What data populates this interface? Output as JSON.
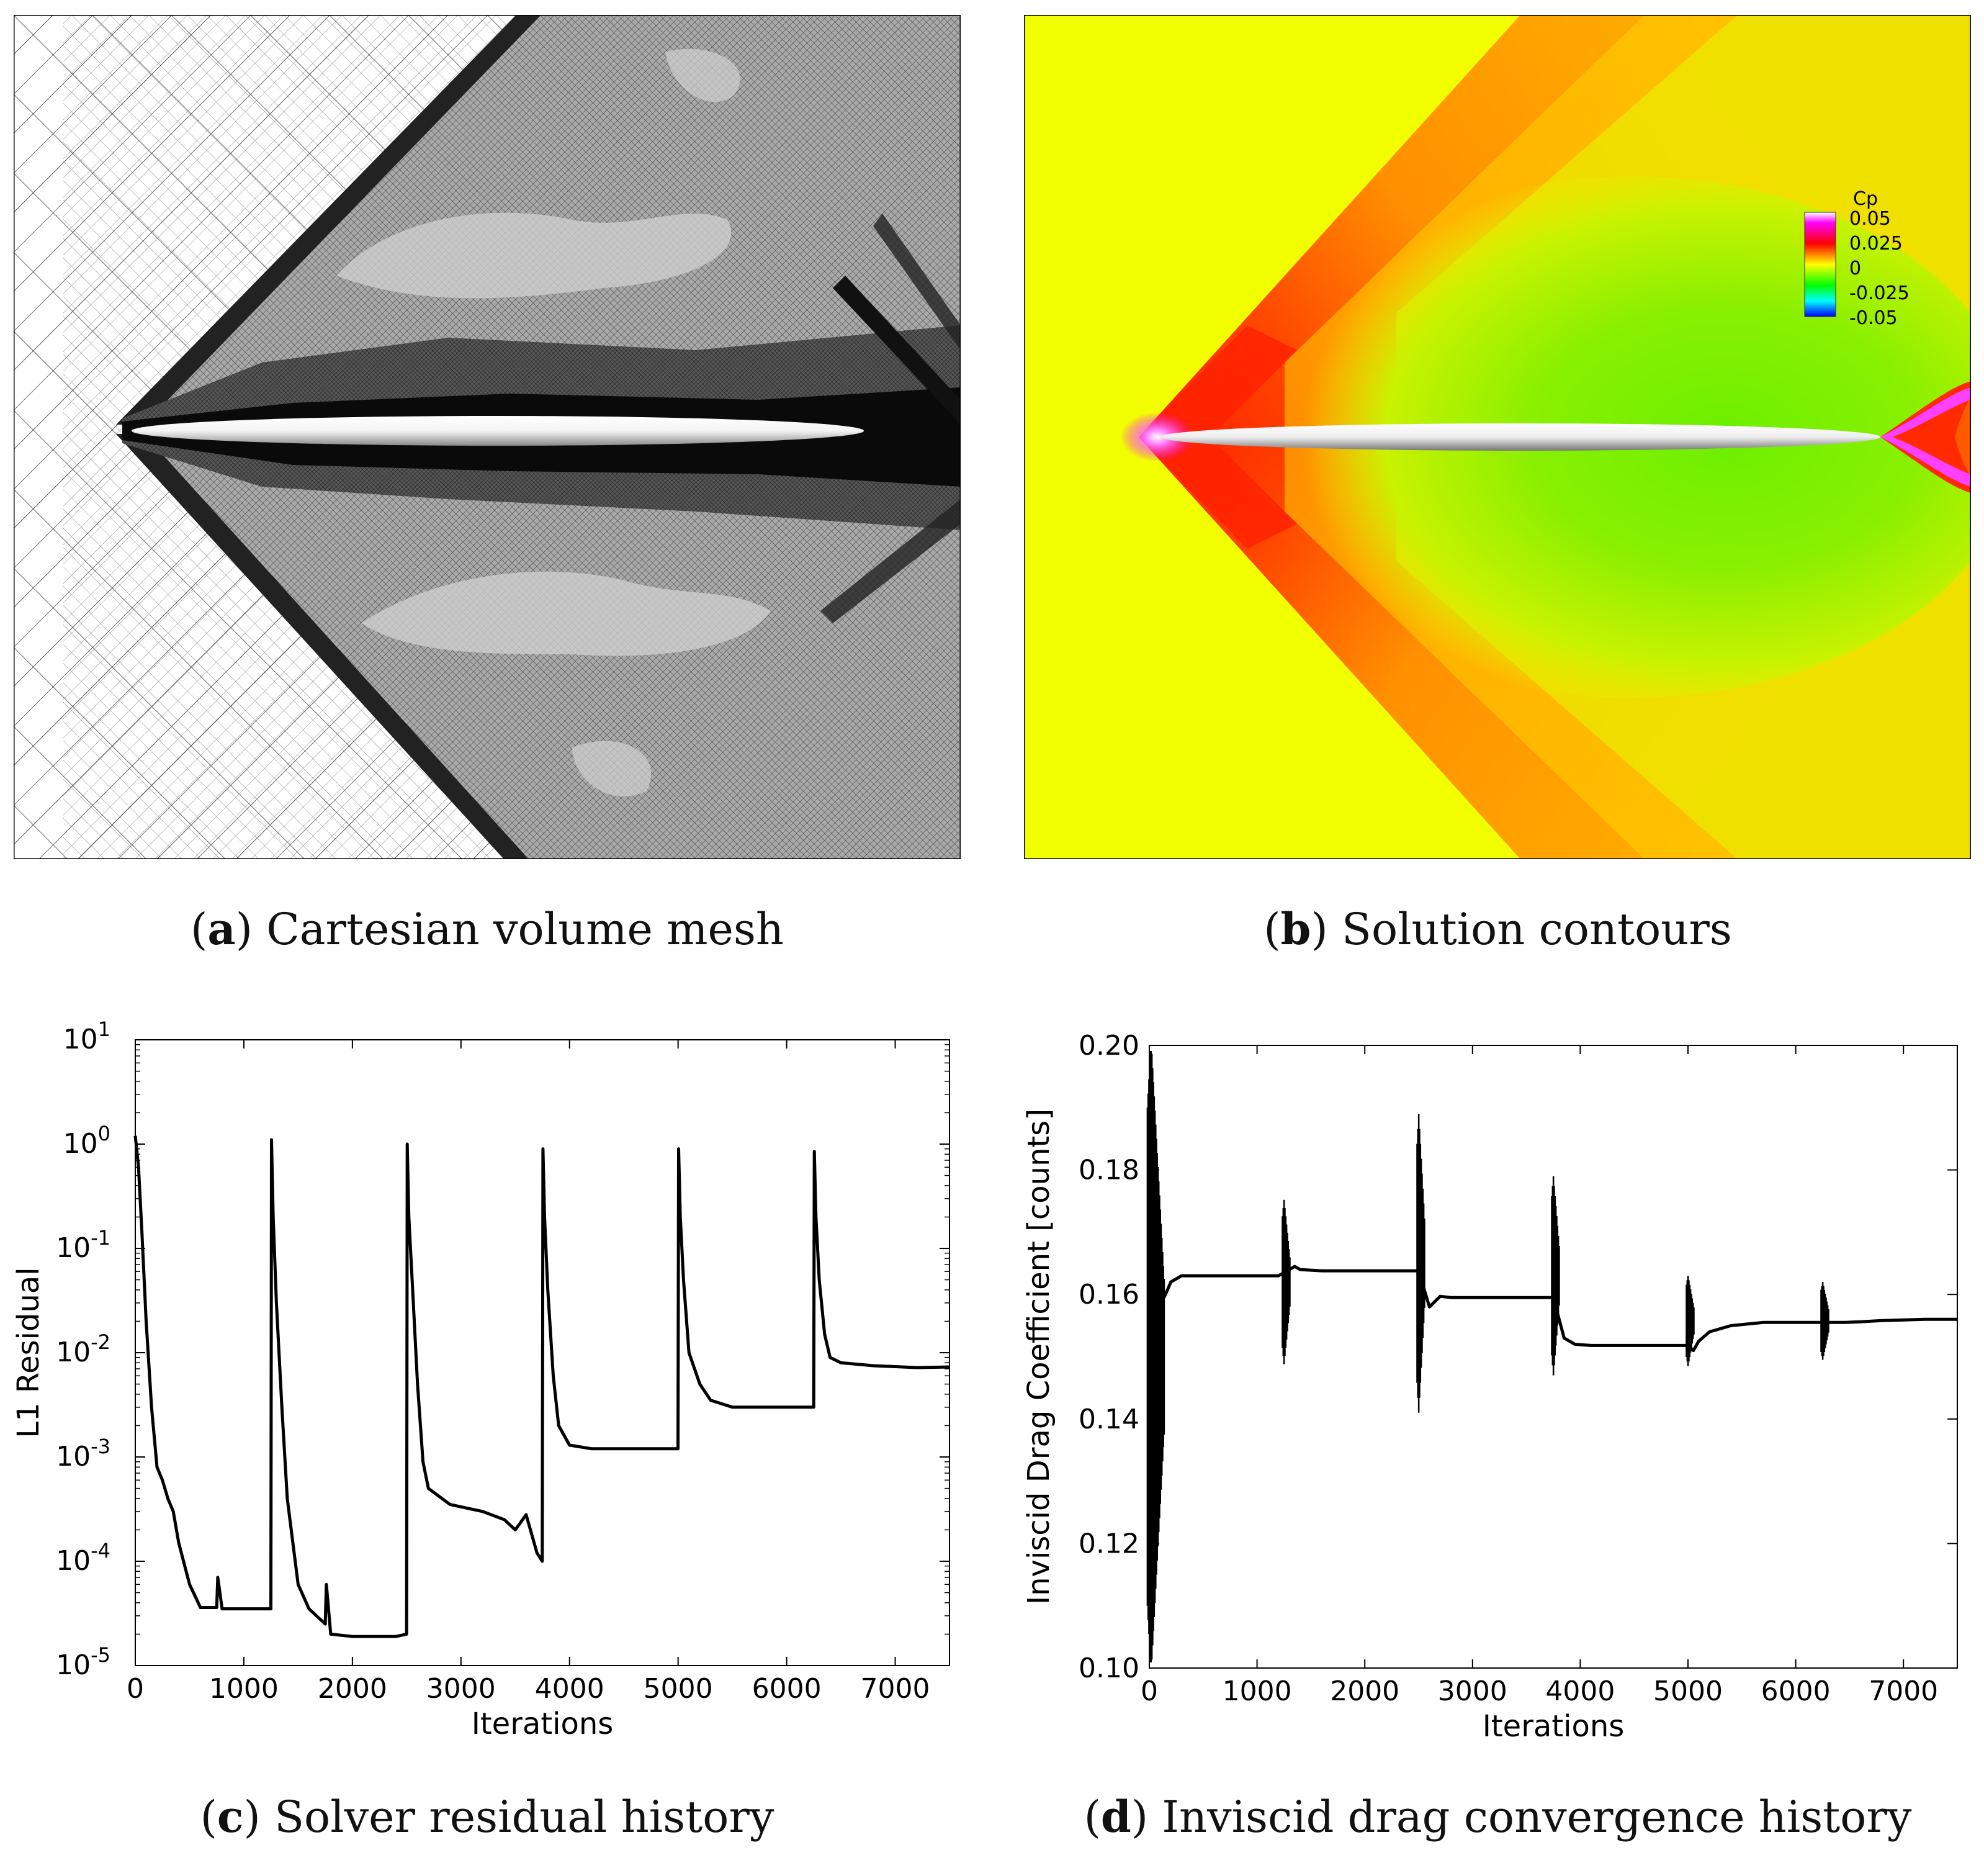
{
  "captions": {
    "a": {
      "letter": "a",
      "text": "Cartesian volume mesh"
    },
    "b": {
      "letter": "b",
      "text": "Solution contours"
    },
    "c": {
      "letter": "c",
      "text": "Solver residual history"
    },
    "d": {
      "letter": "d",
      "text": "Inviscid drag convergence history"
    }
  },
  "legend": {
    "title": "Cp",
    "labels": [
      "0.05",
      "0.025",
      "0",
      "-0.025",
      "-0.05"
    ],
    "colors": [
      "#ff00ff",
      "#ff0000",
      "#ffff00",
      "#00ff00",
      "#00ffff",
      "#0000ff"
    ]
  },
  "colors": {
    "yellow": "#f2ff00",
    "orange": "#ff8000",
    "red": "#ff2a00",
    "green": "#7cf000",
    "mesh_gray": "#a0a0a0"
  },
  "chart_data": [
    {
      "type": "line",
      "id": "residual",
      "title": "",
      "xlabel": "Iterations",
      "ylabel": "L1 Residual",
      "yscale": "log",
      "xlim": [
        0,
        7500
      ],
      "ylim_exponents": [
        -5,
        1
      ],
      "xticks": [
        "0",
        "1000",
        "2000",
        "3000",
        "4000",
        "5000",
        "6000",
        "7000"
      ],
      "ytick_base": "10",
      "ytick_exponents": [
        "-5",
        "-4",
        "-3",
        "-2",
        "-1",
        "0",
        "1"
      ],
      "x": [
        0,
        30,
        60,
        100,
        150,
        200,
        250,
        300,
        350,
        400,
        500,
        600,
        750,
        760,
        800,
        1000,
        1249,
        1255,
        1270,
        1300,
        1350,
        1400,
        1500,
        1600,
        1700,
        1750,
        1760,
        1800,
        2000,
        2200,
        2400,
        2499,
        2505,
        2520,
        2550,
        2600,
        2650,
        2700,
        2900,
        3200,
        3400,
        3500,
        3600,
        3700,
        3749,
        3755,
        3770,
        3800,
        3850,
        3900,
        4000,
        4200,
        4500,
        4700,
        4999,
        5005,
        5020,
        5050,
        5100,
        5200,
        5300,
        5500,
        5800,
        6000,
        6249,
        6255,
        6270,
        6300,
        6350,
        6400,
        6500,
        6800,
        7200,
        7500
      ],
      "values": [
        1.2,
        0.6,
        0.15,
        0.02,
        0.003,
        0.0008,
        0.0006,
        0.0004,
        0.0003,
        0.00015,
        6e-05,
        3.6e-05,
        3.6e-05,
        7e-05,
        3.5e-05,
        3.5e-05,
        3.5e-05,
        1.1,
        0.2,
        0.03,
        0.003,
        0.0004,
        6e-05,
        3.5e-05,
        2.8e-05,
        2.5e-05,
        6e-05,
        2e-05,
        1.9e-05,
        1.9e-05,
        1.9e-05,
        2e-05,
        1.0,
        0.2,
        0.05,
        0.005,
        0.0009,
        0.0005,
        0.00035,
        0.0003,
        0.00025,
        0.0002,
        0.00028,
        0.00012,
        0.0001,
        0.9,
        0.2,
        0.04,
        0.006,
        0.002,
        0.0013,
        0.0012,
        0.0012,
        0.0012,
        0.0012,
        0.9,
        0.2,
        0.05,
        0.01,
        0.005,
        0.0035,
        0.003,
        0.003,
        0.003,
        0.003,
        0.85,
        0.2,
        0.05,
        0.015,
        0.009,
        0.008,
        0.0075,
        0.0072,
        0.0073
      ]
    },
    {
      "type": "line",
      "id": "drag",
      "title": "",
      "xlabel": "Iterations",
      "ylabel": "Inviscid Drag Coefficient [counts]",
      "xlim": [
        0,
        7500
      ],
      "ylim": [
        0.1,
        0.2
      ],
      "xticks": [
        "0",
        "1000",
        "2000",
        "3000",
        "4000",
        "5000",
        "6000",
        "7000"
      ],
      "yticks": [
        "0.10",
        "0.12",
        "0.14",
        "0.16",
        "0.18",
        "0.20"
      ],
      "x": [
        0,
        150,
        200,
        300,
        400,
        600,
        800,
        1000,
        1200,
        1250,
        1350,
        1400,
        1600,
        2000,
        2400,
        2500,
        2600,
        2700,
        2800,
        3000,
        3400,
        3750,
        3850,
        3950,
        4100,
        4500,
        4800,
        5000,
        5050,
        5100,
        5200,
        5400,
        5700,
        6000,
        6250,
        6450,
        6600,
        6800,
        7200,
        7500
      ],
      "values": [
        0.155,
        0.16,
        0.162,
        0.163,
        0.163,
        0.163,
        0.163,
        0.163,
        0.163,
        0.1635,
        0.1645,
        0.164,
        0.1638,
        0.1638,
        0.1638,
        0.1638,
        0.158,
        0.1597,
        0.1595,
        0.1595,
        0.1595,
        0.1595,
        0.153,
        0.152,
        0.1518,
        0.1518,
        0.1518,
        0.1518,
        0.151,
        0.1525,
        0.154,
        0.155,
        0.1555,
        0.1555,
        0.1555,
        0.1555,
        0.1556,
        0.1558,
        0.156,
        0.156
      ],
      "spikes": [
        {
          "x": 60,
          "low": 0.1,
          "high": 0.2
        },
        {
          "x": 1270,
          "low": 0.1488,
          "high": 0.1752
        },
        {
          "x": 2520,
          "low": 0.141,
          "high": 0.189
        },
        {
          "x": 3770,
          "low": 0.147,
          "high": 0.179
        },
        {
          "x": 5020,
          "low": 0.1485,
          "high": 0.163
        },
        {
          "x": 6270,
          "low": 0.1495,
          "high": 0.162
        }
      ]
    }
  ]
}
